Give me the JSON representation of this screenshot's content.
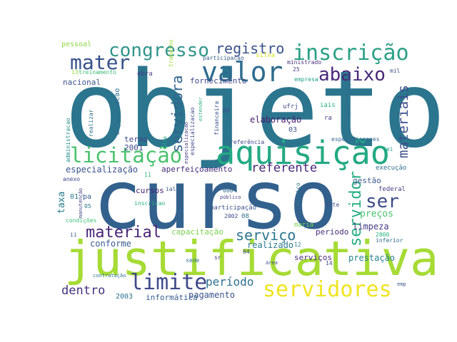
{
  "words": [
    {
      "text": "objeto",
      "color": "#2b758e"
    },
    {
      "text": "curso",
      "color": "#33618d"
    },
    {
      "text": "justificativa",
      "color": "#a6db35"
    },
    {
      "text": "aquisição",
      "color": "#23a983"
    },
    {
      "text": "servidores",
      "color": "#f0e41f"
    },
    {
      "text": "inscrição",
      "color": "#2aa086"
    },
    {
      "text": "valor",
      "color": "#2e6c8e"
    },
    {
      "text": "licitação",
      "color": "#4ac26d"
    },
    {
      "text": "congresso",
      "color": "#31958b"
    },
    {
      "text": "registro",
      "color": "#3a528b"
    },
    {
      "text": "mater",
      "color": "#36518a"
    },
    {
      "text": "abaixo",
      "color": "#482878"
    },
    {
      "text": "limite",
      "color": "#3f4a8a"
    },
    {
      "text": "material",
      "color": "#482576"
    },
    {
      "text": "serviço",
      "color": "#2b758e"
    },
    {
      "text": "ser",
      "color": "#3e4c8a"
    },
    {
      "text": "servidora",
      "color": "#31648d"
    },
    {
      "text": "servidor",
      "color": "#25ad81"
    },
    {
      "text": "materiais",
      "color": "#3c4f8a"
    },
    {
      "text": "referente",
      "color": "#482576"
    },
    {
      "text": "dentro",
      "color": "#46307e"
    },
    {
      "text": "período",
      "color": "#2d708e"
    },
    {
      "text": "fornecimento",
      "color": "#40478a"
    },
    {
      "text": "elaboração",
      "color": "#481c6e"
    },
    {
      "text": "especialização",
      "color": "#3b528b"
    },
    {
      "text": "aperfeiçoamento",
      "color": "#472d7b"
    },
    {
      "text": "capacitação",
      "color": "#7ad151"
    },
    {
      "text": "realizado",
      "color": "#29788e"
    },
    {
      "text": "conforme",
      "color": "#38588c"
    },
    {
      "text": "pagamento",
      "color": "#3b528b"
    },
    {
      "text": "informática",
      "color": "#355f8d"
    },
    {
      "text": "prestação",
      "color": "#26828e"
    },
    {
      "text": "serviços",
      "color": "#472c7a"
    },
    {
      "text": "preços",
      "color": "#4ac26d"
    },
    {
      "text": "limpeza",
      "color": "#443a83"
    },
    {
      "text": "periodo",
      "color": "#462f7e"
    },
    {
      "text": "gestão",
      "color": "#38598c"
    },
    {
      "text": "federal",
      "color": "#433e85"
    },
    {
      "text": "execução",
      "color": "#2e6e8e"
    },
    {
      "text": "cursos",
      "color": "#482173"
    },
    {
      "text": "taxa",
      "color": "#287d8e"
    },
    {
      "text": "termo",
      "color": "#404688"
    },
    {
      "text": "2001",
      "color": "#3f4788"
    },
    {
      "text": "2003",
      "color": "#2c728e"
    },
    {
      "text": "capacitacao",
      "color": "#2d708e"
    },
    {
      "text": "nacional",
      "color": "#3b528b"
    },
    {
      "text": "pessoal",
      "color": "#8bd646"
    },
    {
      "text": "treinamento",
      "color": "#3dbc74"
    },
    {
      "text": "obra",
      "color": "#443983"
    },
    {
      "text": "trabalho",
      "color": "#a0da39"
    },
    {
      "text": "participacao",
      "color": "#365d8d"
    },
    {
      "text": "silva",
      "color": "#d2e21b"
    },
    {
      "text": "ministrado",
      "color": "#472f7d"
    },
    {
      "text": "empresa",
      "color": "#20a386"
    },
    {
      "text": "mil",
      "color": "#3b528b"
    },
    {
      "text": "especificações",
      "color": "#2f6b8e"
    },
    {
      "text": "especificacoes",
      "color": "#31678e"
    },
    {
      "text": "especializacao",
      "color": "#3e4989"
    },
    {
      "text": "financeira",
      "color": "#3a538b"
    },
    {
      "text": "referência",
      "color": "#404688"
    },
    {
      "text": "ufrj",
      "color": "#3e4989"
    },
    {
      "text": "iais",
      "color": "#2ab07f"
    },
    {
      "text": "ra",
      "color": "#443983"
    },
    {
      "text": "realizar",
      "color": "#2d718e"
    },
    {
      "text": "administracao",
      "color": "#21918c"
    },
    {
      "text": "anexo",
      "color": "#3f4889"
    },
    {
      "text": "01",
      "color": "#2c738e"
    },
    {
      "text": "pa",
      "color": "#375a8c"
    },
    {
      "text": "05",
      "color": "#2a788e"
    },
    {
      "text": "condições",
      "color": "#3dbc74"
    },
    {
      "text": "manutenção",
      "color": "#404688"
    },
    {
      "text": "inscricao",
      "color": "#26ad81"
    },
    {
      "text": "público",
      "color": "#433d84"
    },
    {
      "text": "participação",
      "color": "#3b528b"
    },
    {
      "text": "servico",
      "color": "#2c738e"
    },
    {
      "text": "mite",
      "color": "#39568c"
    },
    {
      "text": "2002",
      "color": "#3e4a89"
    },
    {
      "text": "08",
      "color": "#2c738e"
    },
    {
      "text": "maria",
      "color": "#75d054"
    },
    {
      "text": "12",
      "color": "#26818e"
    },
    {
      "text": "04",
      "color": "#3b528b"
    },
    {
      "text": "sr",
      "color": "#423f85"
    },
    {
      "text": "sede",
      "color": "#2d708e"
    },
    {
      "text": "14",
      "color": "#3e4c8a"
    },
    {
      "text": "contratação",
      "color": "#2c728e"
    },
    {
      "text": "ii",
      "color": "#38588c"
    },
    {
      "text": "lei",
      "color": "#20a386"
    },
    {
      "text": "2000",
      "color": "#26ad81"
    },
    {
      "text": "inferior",
      "color": "#2f6c8e"
    },
    {
      "text": "ial",
      "color": "#3a538b"
    },
    {
      "text": "000",
      "color": "#31678e"
    },
    {
      "text": "00",
      "color": "#3b528b"
    },
    {
      "text": "03",
      "color": "#3a548c"
    },
    {
      "text": "25",
      "color": "#404688"
    },
    {
      "text": "13",
      "color": "#95d840"
    },
    {
      "text": "11",
      "color": "#38b977"
    },
    {
      "text": "17",
      "color": "#27808e"
    },
    {
      "text": "área",
      "color": "#3e4c8a"
    },
    {
      "text": "emp",
      "color": "#3b528b"
    },
    {
      "text": "estender",
      "color": "#2db27d"
    },
    {
      "text": "especializacao",
      "color": "#453882"
    },
    {
      "text": "ofia",
      "color": "#22a884"
    }
  ]
}
